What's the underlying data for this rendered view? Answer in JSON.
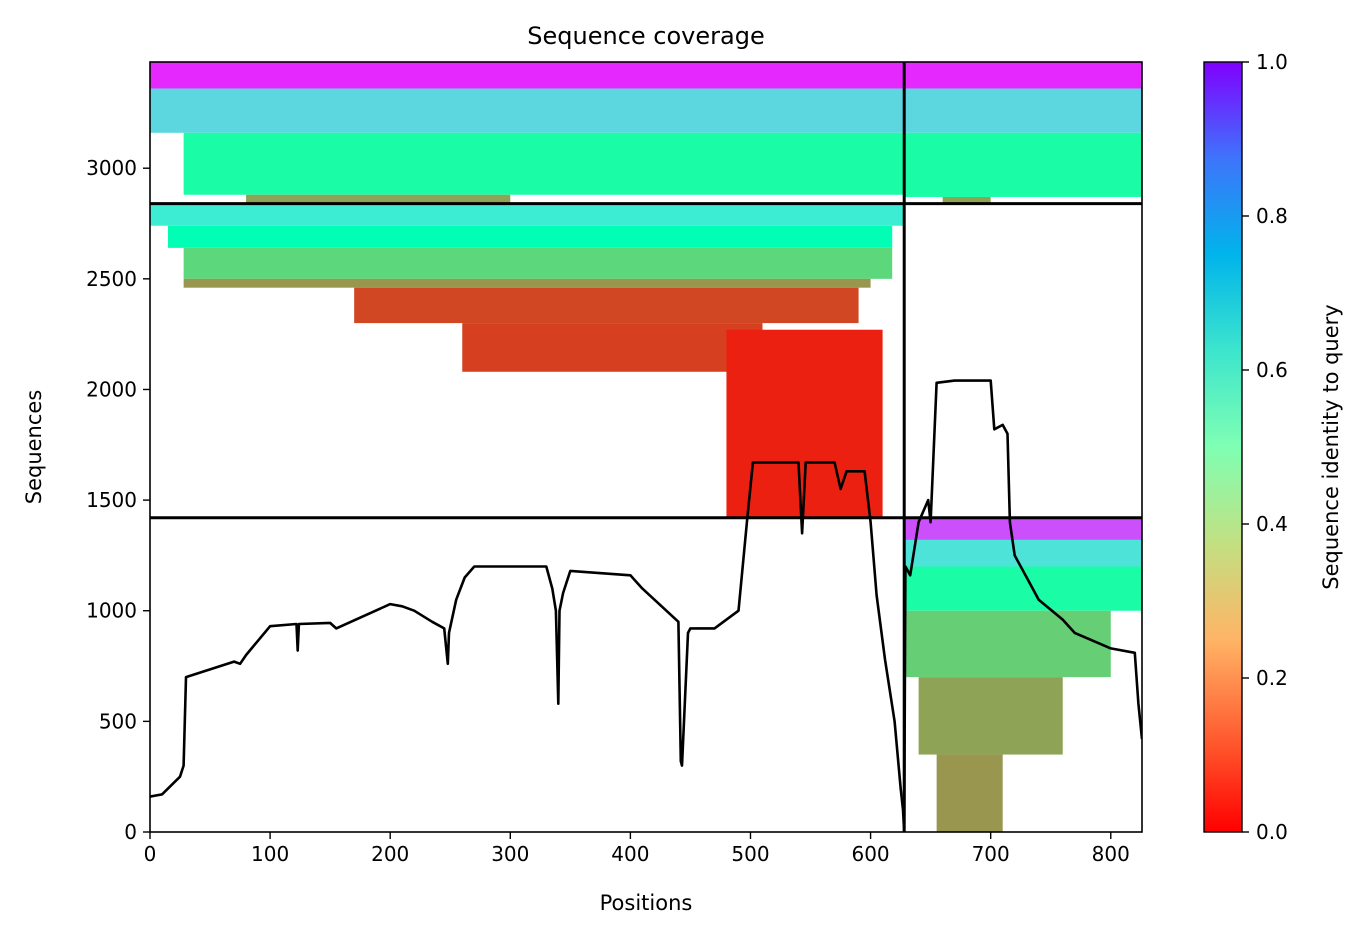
{
  "chart_data": {
    "type": "heatmap",
    "title": "Sequence coverage",
    "xlabel": "Positions",
    "ylabel": "Sequences",
    "xlim": [
      0,
      826
    ],
    "ylim": [
      0,
      3480
    ],
    "x_ticks": [
      0,
      100,
      200,
      300,
      400,
      500,
      600,
      700,
      800
    ],
    "y_ticks": [
      0,
      500,
      1000,
      1500,
      2000,
      2500,
      3000
    ],
    "colorbar": {
      "label": "Sequence identity to query",
      "range": [
        0.0,
        1.0
      ],
      "ticks": [
        "0.0",
        "0.2",
        "0.4",
        "0.6",
        "0.8",
        "1.0"
      ],
      "colormap": "rainbow_r"
    },
    "segment_boundaries": {
      "chain_break_positions": [
        628
      ],
      "msa_block_boundaries_sequences": [
        1420,
        2840
      ]
    },
    "heatmap_regions": [
      {
        "x": [
          0,
          628
        ],
        "y": [
          3360,
          3480
        ],
        "identity": 0.95
      },
      {
        "x": [
          0,
          628
        ],
        "y": [
          3160,
          3360
        ],
        "identity": 0.68
      },
      {
        "x": [
          28,
          628
        ],
        "y": [
          2880,
          3160
        ],
        "identity": 0.45
      },
      {
        "x": [
          80,
          300
        ],
        "y": [
          2840,
          2880
        ],
        "identity": 0.22
      },
      {
        "x": [
          0,
          628
        ],
        "y": [
          2740,
          2840
        ],
        "identity": 0.62
      },
      {
        "x": [
          15,
          618
        ],
        "y": [
          2640,
          2740
        ],
        "identity": 0.5
      },
      {
        "x": [
          28,
          618
        ],
        "y": [
          2500,
          2640
        ],
        "identity": 0.32
      },
      {
        "x": [
          28,
          600
        ],
        "y": [
          2460,
          2500
        ],
        "identity": 0.2
      },
      {
        "x": [
          170,
          590
        ],
        "y": [
          2300,
          2460
        ],
        "identity": 0.09
      },
      {
        "x": [
          260,
          510
        ],
        "y": [
          2080,
          2300
        ],
        "identity": 0.08
      },
      {
        "x": [
          480,
          610
        ],
        "y": [
          1420,
          2270
        ],
        "identity": 0.04
      },
      {
        "x": [
          628,
          826
        ],
        "y": [
          3360,
          3480
        ],
        "identity": 0.95
      },
      {
        "x": [
          628,
          826
        ],
        "y": [
          3160,
          3360
        ],
        "identity": 0.68
      },
      {
        "x": [
          628,
          826
        ],
        "y": [
          2870,
          3160
        ],
        "identity": 0.45
      },
      {
        "x": [
          660,
          700
        ],
        "y": [
          2840,
          2870
        ],
        "identity": 0.22
      },
      {
        "x": [
          628,
          826
        ],
        "y": [
          1320,
          1420
        ],
        "identity": 0.9
      },
      {
        "x": [
          628,
          826
        ],
        "y": [
          1200,
          1320
        ],
        "identity": 0.65
      },
      {
        "x": [
          628,
          826
        ],
        "y": [
          1000,
          1200
        ],
        "identity": 0.45
      },
      {
        "x": [
          628,
          800
        ],
        "y": [
          700,
          1000
        ],
        "identity": 0.3
      },
      {
        "x": [
          640,
          760
        ],
        "y": [
          350,
          700
        ],
        "identity": 0.22
      },
      {
        "x": [
          655,
          710
        ],
        "y": [
          0,
          350
        ],
        "identity": 0.2
      }
    ],
    "coverage_line": {
      "name": "",
      "x": [
        0,
        10,
        25,
        28,
        30,
        70,
        75,
        80,
        100,
        122,
        123,
        124,
        150,
        155,
        200,
        210,
        220,
        235,
        245,
        248,
        249,
        255,
        262,
        270,
        300,
        330,
        335,
        338,
        340,
        341,
        344,
        350,
        400,
        410,
        440,
        442,
        443,
        448,
        450,
        470,
        490,
        497,
        502,
        540,
        543,
        546,
        570,
        575,
        580,
        595,
        600,
        605,
        612,
        620,
        625,
        627,
        628,
        629,
        633,
        640,
        648,
        650,
        655,
        670,
        700,
        703,
        710,
        714,
        716,
        720,
        730,
        740,
        760,
        770,
        800,
        820,
        823,
        826
      ],
      "y": [
        160,
        170,
        250,
        300,
        700,
        770,
        760,
        800,
        930,
        940,
        820,
        940,
        945,
        920,
        1030,
        1020,
        1000,
        950,
        920,
        760,
        900,
        1050,
        1150,
        1200,
        1200,
        1200,
        1100,
        1000,
        580,
        1000,
        1080,
        1180,
        1160,
        1100,
        950,
        320,
        300,
        900,
        920,
        920,
        1000,
        1400,
        1670,
        1670,
        1350,
        1670,
        1670,
        1550,
        1630,
        1630,
        1400,
        1070,
        780,
        500,
        200,
        100,
        0,
        1200,
        1160,
        1400,
        1500,
        1400,
        2030,
        2040,
        2040,
        1820,
        1840,
        1800,
        1400,
        1250,
        1150,
        1050,
        960,
        900,
        830,
        810,
        580,
        420
      ]
    }
  }
}
